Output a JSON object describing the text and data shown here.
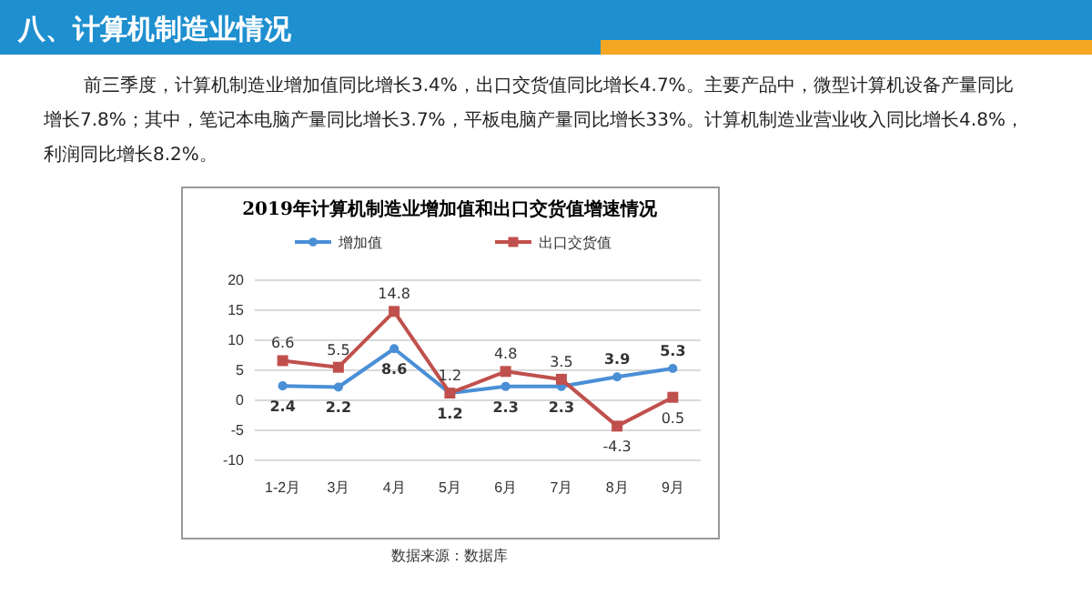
{
  "chart_data": {
    "type": "line",
    "title": "2019年计算机制造业增加值和出口交货值增速情况",
    "annotations": [
      "八、计算机制造业情况",
      "前三季度，计算机制造业增加值同比增长3.4%，出口交货值同比增长4.7%。主要产品中，微型计算机设备产量同比增长7.8%；其中，笔记本电脑产量同比增长3.7%，平板电脑产量同比增长33%。计算机制造业营业收入同比增长4.8%，利润同比增长8.2%。",
      "数据来源：数据库"
    ],
    "categories": [
      "1-2月",
      "3月",
      "4月",
      "5月",
      "6月",
      "7月",
      "8月",
      "9月"
    ],
    "series": [
      {
        "name": "增加值",
        "color": "#4a8fd6",
        "marker": "circle",
        "values": [
          2.4,
          2.2,
          8.6,
          1.2,
          2.3,
          2.3,
          3.9,
          5.3
        ]
      },
      {
        "name": "出口交货值",
        "color": "#c0504d",
        "marker": "square",
        "values": [
          6.6,
          5.5,
          14.8,
          1.2,
          4.8,
          3.5,
          -4.3,
          0.5
        ]
      }
    ],
    "ylim": [
      -10,
      20
    ],
    "yticks": [
      -10,
      -5,
      0,
      5,
      10,
      15,
      20
    ],
    "grid": "y",
    "legend": "top",
    "data_labels": true
  }
}
